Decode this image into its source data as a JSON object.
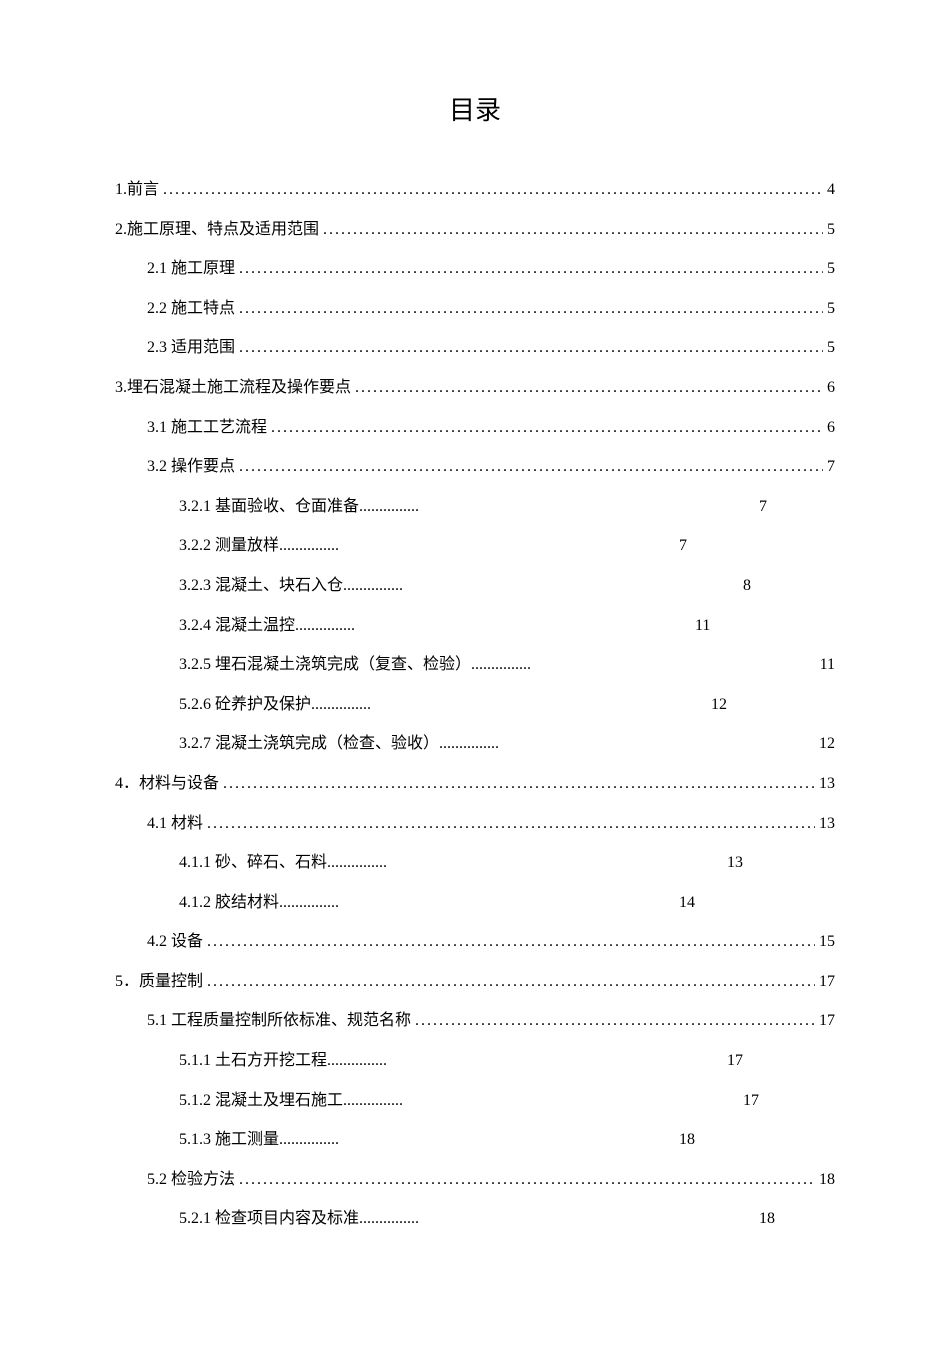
{
  "title": "目录",
  "entries": [
    {
      "level": 1,
      "label": "1.前言",
      "page": "4",
      "fullLeader": true
    },
    {
      "level": 1,
      "label": "2.施工原理、特点及适用范围 ",
      "page": "5",
      "fullLeader": true
    },
    {
      "level": 2,
      "label": "2.1 施工原理 ",
      "page": "5",
      "fullLeader": true
    },
    {
      "level": 2,
      "label": "2.2 施工特点 ",
      "page": "5",
      "fullLeader": true
    },
    {
      "level": 2,
      "label": "2.3 适用范围 ",
      "page": "5",
      "fullLeader": true
    },
    {
      "level": 1,
      "label": "3.埋石混凝土施工流程及操作要点 ",
      "page": "6",
      "fullLeader": true
    },
    {
      "level": 2,
      "label": "3.1 施工工艺流程 ",
      "page": "6",
      "fullLeader": true
    },
    {
      "level": 2,
      "label": "3.2 操作要点",
      "page": "7",
      "fullLeader": true
    },
    {
      "level": 3,
      "label": "3.2.1  基面验收、仓面准备 ",
      "page": "7",
      "fullLeader": false
    },
    {
      "level": 3,
      "label": "3.2.2  测量放样 ",
      "page": "7",
      "fullLeader": false
    },
    {
      "level": 3,
      "label": "3.2.3  混凝土、块石入仓 ",
      "page": "8",
      "fullLeader": false
    },
    {
      "level": 3,
      "label": "3.2.4  混凝土温控 ",
      "page": "11",
      "fullLeader": false
    },
    {
      "level": 3,
      "label": "3.2.5  埋石混凝土浇筑完成（复查、检验） ",
      "page": "11",
      "fullLeader": false
    },
    {
      "level": 3,
      "label": "5.2.6  砼养护及保护 ",
      "page": "12",
      "fullLeader": false
    },
    {
      "level": 3,
      "label": "3.2.7  混凝土浇筑完成（检查、验收） ",
      "page": "12",
      "fullLeader": false
    },
    {
      "level": 1,
      "label": "4．材料与设备 ",
      "page": "13",
      "fullLeader": true
    },
    {
      "level": 2,
      "label": "4.1 材料",
      "page": "13",
      "fullLeader": true
    },
    {
      "level": 3,
      "label": "4.1.1  砂、碎石、石料 ",
      "page": "13",
      "fullLeader": false
    },
    {
      "level": 3,
      "label": "4.1.2  胶结材料 ",
      "page": "14",
      "fullLeader": false
    },
    {
      "level": 2,
      "label": "4.2 设备",
      "page": "15",
      "fullLeader": true
    },
    {
      "level": 1,
      "label": "5．质量控制",
      "page": "17",
      "fullLeader": true
    },
    {
      "level": 2,
      "label": "5.1 工程质量控制所依标准、规范名称 ",
      "page": "17",
      "fullLeader": true
    },
    {
      "level": 3,
      "label": "5.1.1  土石方开挖工程 ",
      "page": "17",
      "fullLeader": false
    },
    {
      "level": 3,
      "label": "5.1.2  混凝土及埋石施工 ",
      "page": "17",
      "fullLeader": false
    },
    {
      "level": 3,
      "label": "5.1.3  施工测量 ",
      "page": "18",
      "fullLeader": false
    },
    {
      "level": 2,
      "label": "5.2 检验方法",
      "page": "18",
      "fullLeader": true
    },
    {
      "level": 3,
      "label": "5.2.1  检查项目内容及标准 ",
      "page": "18",
      "fullLeader": false
    }
  ]
}
